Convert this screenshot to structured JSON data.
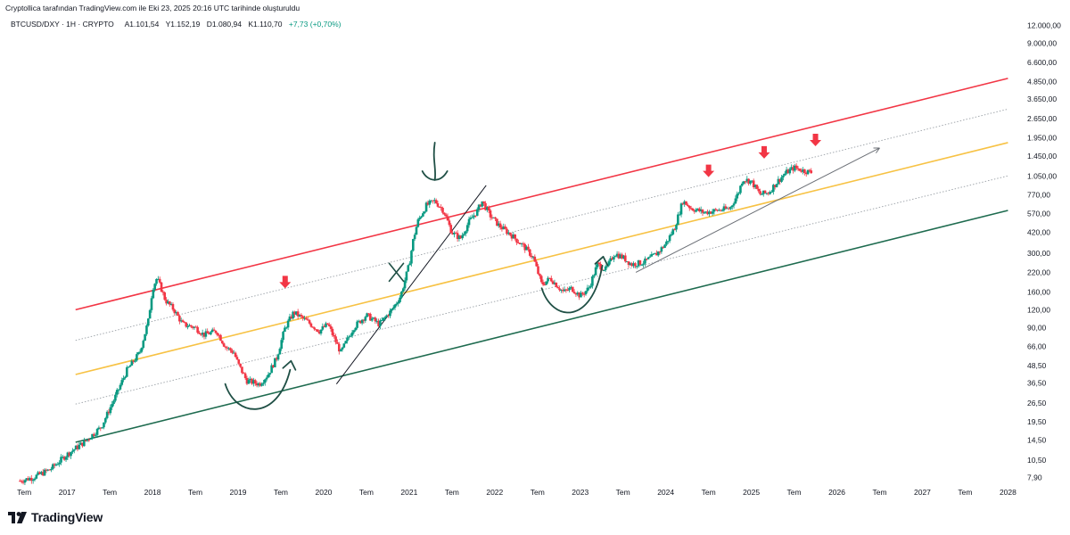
{
  "header": {
    "caption": "Cryptollica tarafından TradingView.com ile Eki 23, 2025 20:16 UTC tarihinde oluşturuldu"
  },
  "symbol_bar": {
    "symbol": "BTCUSD/DXY · 1H · CRYPTO",
    "open": "A1.101,54",
    "high": "Y1.152,19",
    "low": "D1.080,94",
    "close": "K1.110,70",
    "change": "+7,73 (+0,70%)"
  },
  "brand": {
    "name": "TradingView",
    "logo_icon": "tradingview-logo-icon"
  },
  "colors": {
    "up": "#089981",
    "down": "#f23645",
    "upper_channel": "#f23645",
    "middle_channel": "#f7c244",
    "lower_channel": "#1e6b4f",
    "dotted": "#9aa0a6",
    "annotation": "#1f4f45",
    "marker": "#f23645"
  },
  "chart_data": {
    "type": "line",
    "title": "BTCUSD/DXY",
    "scale": "log",
    "price_axis": {
      "labels": [
        "12.000,00",
        "9.000,00",
        "6.600,00",
        "4.850,00",
        "3.650,00",
        "2.650,00",
        "1.950,00",
        "1.450,00",
        "1.050,00",
        "770,00",
        "570,00",
        "420,00",
        "300,00",
        "220,00",
        "160,00",
        "120,00",
        "90,00",
        "66,00",
        "48,50",
        "36,50",
        "26,50",
        "19,50",
        "14,50",
        "10,50",
        "7,90"
      ],
      "values": [
        12000,
        9000,
        6600,
        4850,
        3650,
        2650,
        1950,
        1450,
        1050,
        770,
        570,
        420,
        300,
        220,
        160,
        120,
        90,
        66,
        48.5,
        36.5,
        26.5,
        19.5,
        14.5,
        10.5,
        7.9
      ]
    },
    "time_axis": {
      "labels": [
        "Tem",
        "2017",
        "Tem",
        "2018",
        "Tem",
        "2019",
        "Tem",
        "2020",
        "Tem",
        "2021",
        "Tem",
        "2022",
        "Tem",
        "2023",
        "Tem",
        "2024",
        "Tem",
        "2025",
        "Tem",
        "2026",
        "Tem",
        "2027",
        "Tem",
        "2028"
      ],
      "values": [
        2016.5,
        2017,
        2017.5,
        2018,
        2018.5,
        2019,
        2019.5,
        2020,
        2020.5,
        2021,
        2021.5,
        2022,
        2022.5,
        2023,
        2023.5,
        2024,
        2024.5,
        2025,
        2025.5,
        2026,
        2026.5,
        2027,
        2027.5,
        2028
      ]
    },
    "series": [
      {
        "type": "line",
        "x": [
          2016.45,
          2016.6,
          2016.8,
          2017.0,
          2017.2,
          2017.4,
          2017.55,
          2017.7,
          2017.85,
          2017.95,
          2018.0,
          2018.05,
          2018.1,
          2018.15,
          2018.25,
          2018.35,
          2018.5,
          2018.6,
          2018.75,
          2018.85,
          2018.95,
          2019.0,
          2019.1,
          2019.25,
          2019.35,
          2019.45,
          2019.55,
          2019.65,
          2019.8,
          2019.95,
          2020.05,
          2020.2,
          2020.35,
          2020.5,
          2020.65,
          2020.8,
          2020.9,
          2021.0,
          2021.05,
          2021.1,
          2021.2,
          2021.3,
          2021.4,
          2021.5,
          2021.6,
          2021.7,
          2021.8,
          2021.85,
          2021.95,
          2022.05,
          2022.2,
          2022.35,
          2022.45,
          2022.55,
          2022.65,
          2022.8,
          2022.9,
          2023.0,
          2023.1,
          2023.2,
          2023.3,
          2023.4,
          2023.5,
          2023.6,
          2023.75,
          2023.9,
          2024.0,
          2024.1,
          2024.2,
          2024.3,
          2024.45,
          2024.6,
          2024.75,
          2024.85,
          2024.9,
          2025.0,
          2025.1,
          2025.2,
          2025.3,
          2025.4,
          2025.5,
          2025.6,
          2025.7
        ],
        "y": [
          7.5,
          7.9,
          9,
          11.5,
          14,
          18,
          28,
          45,
          60,
          100,
          170,
          200,
          170,
          140,
          120,
          95,
          90,
          80,
          85,
          66,
          60,
          50,
          38,
          36,
          42,
          55,
          90,
          115,
          100,
          85,
          95,
          60,
          90,
          110,
          95,
          120,
          150,
          250,
          380,
          500,
          650,
          700,
          600,
          420,
          380,
          500,
          600,
          700,
          550,
          470,
          400,
          330,
          280,
          180,
          200,
          160,
          170,
          150,
          170,
          250,
          230,
          300,
          280,
          250,
          260,
          300,
          350,
          450,
          700,
          620,
          580,
          600,
          620,
          800,
          1000,
          960,
          780,
          800,
          950,
          1100,
          1200,
          1150,
          1110
        ]
      }
    ],
    "lines": [
      {
        "name": "upper-channel",
        "style": "solid",
        "color": "#f23645",
        "from": [
          2017.1,
          120
        ],
        "to": [
          2028.0,
          5100
        ]
      },
      {
        "name": "middle-channel",
        "style": "solid",
        "color": "#f7c244",
        "from": [
          2017.1,
          42
        ],
        "to": [
          2028.0,
          1800
        ]
      },
      {
        "name": "lower-channel",
        "style": "solid",
        "color": "#1e6b4f",
        "from": [
          2017.1,
          14
        ],
        "to": [
          2028.0,
          600
        ]
      },
      {
        "name": "dotted-1",
        "style": "dotted",
        "color": "#9aa0a6",
        "from": [
          2017.1,
          73
        ],
        "to": [
          2028.0,
          3100
        ]
      },
      {
        "name": "dotted-2",
        "style": "dotted",
        "color": "#9aa0a6",
        "from": [
          2017.1,
          26
        ],
        "to": [
          2028.0,
          1050
        ]
      },
      {
        "name": "uptrend-arrow",
        "style": "solid",
        "color": "#6b6f76",
        "from": [
          2023.65,
          220
        ],
        "to": [
          2026.5,
          1650
        ]
      },
      {
        "name": "breakout-line",
        "style": "solid",
        "color": "#131722",
        "from": [
          2020.15,
          36
        ],
        "to": [
          2021.9,
          900
        ]
      }
    ],
    "markers": [
      {
        "name": "down-arrow",
        "x": 2019.55,
        "y": 165
      },
      {
        "name": "down-arrow",
        "x": 2024.5,
        "y": 1000
      },
      {
        "name": "down-arrow",
        "x": 2025.15,
        "y": 1350
      },
      {
        "name": "down-arrow",
        "x": 2025.75,
        "y": 1650
      }
    ],
    "annotations": [
      {
        "name": "smile-curve-2019",
        "x": [
          2018.85,
          2019.65
        ],
        "y": [
          36,
          48
        ]
      },
      {
        "name": "smile-curve-2022",
        "x": [
          2022.55,
          2023.3
        ],
        "y": [
          170,
          260
        ]
      },
      {
        "name": "cross-mark-2021",
        "x": 2020.85,
        "y": 220
      },
      {
        "name": "top-down-arrow-2021",
        "x": 2021.3,
        "y": 900
      }
    ],
    "xlim": [
      2016.3,
      2028.1
    ],
    "ylim": [
      6.8,
      14000
    ],
    "grid": false,
    "legend": "none"
  }
}
